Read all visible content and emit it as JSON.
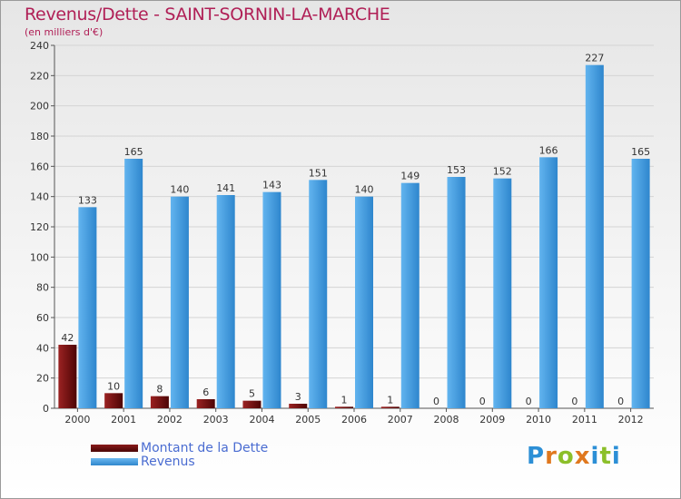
{
  "header": {
    "title": "Revenus/Dette - SAINT-SORNIN-LA-MARCHE",
    "subtitle": "(en milliers d'€)"
  },
  "legend": {
    "debt_label": "Montant de la Dette",
    "revenue_label": "Revenus"
  },
  "logo": {
    "letters": [
      "P",
      "r",
      "o",
      "x",
      "i",
      "t",
      "i"
    ]
  },
  "colors": {
    "debt": "#6b0e0e",
    "revenue": "#4aa3e8",
    "title": "#b01f56",
    "legend_text": "#4a6cd1"
  },
  "chart_data": {
    "type": "bar",
    "title": "Revenus/Dette - SAINT-SORNIN-LA-MARCHE",
    "ylabel": "(en milliers d'€)",
    "xlabel": "",
    "ylim": [
      0,
      240
    ],
    "yticks": [
      0,
      20,
      40,
      60,
      80,
      100,
      120,
      140,
      160,
      180,
      200,
      220,
      240
    ],
    "grid": true,
    "categories": [
      "2000",
      "2001",
      "2002",
      "2003",
      "2004",
      "2005",
      "2006",
      "2007",
      "2008",
      "2009",
      "2010",
      "2011",
      "2012"
    ],
    "series": [
      {
        "name": "Montant de la Dette",
        "values": [
          42,
          10,
          8,
          6,
          5,
          3,
          1,
          1,
          0,
          0,
          0,
          0,
          0
        ]
      },
      {
        "name": "Revenus",
        "values": [
          133,
          165,
          140,
          141,
          143,
          151,
          140,
          149,
          153,
          152,
          166,
          227,
          165
        ]
      }
    ]
  }
}
